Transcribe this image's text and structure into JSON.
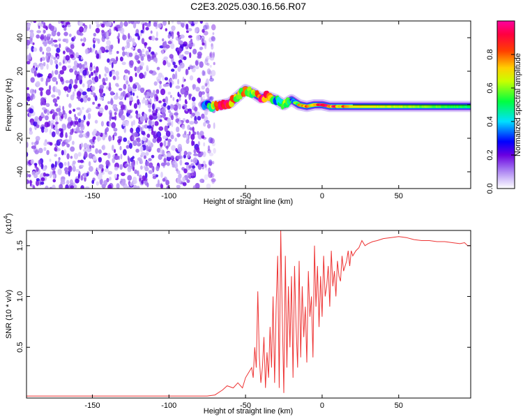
{
  "title": "C2E3.2025.030.16.56.R07",
  "chart_data": [
    {
      "type": "heatmap",
      "xlabel": "Height of straight line (km)",
      "ylabel": "Frequency (Hz)",
      "xlim": [
        -193,
        97
      ],
      "ylim": [
        -50,
        50
      ],
      "x_ticks": [
        -150,
        -100,
        -50,
        0,
        50
      ],
      "y_ticks": [
        -40,
        -20,
        0,
        20,
        40
      ],
      "x_tick_labels": [
        "-150",
        "-100",
        "-50",
        "0",
        "50"
      ],
      "y_tick_labels": [
        "-40",
        "-20",
        "0",
        "20",
        "40"
      ],
      "colorbar": {
        "label": "Normalized spectral amplitude",
        "range": [
          0,
          1
        ],
        "ticks": [
          0.0,
          0.2,
          0.4,
          0.6,
          0.8
        ],
        "tick_labels": [
          "0.0",
          "0.2",
          "0.4",
          "0.6",
          "0.8"
        ],
        "colors": [
          "#ffffff",
          "#c8a8f8",
          "#8a2be2",
          "#4b0082",
          "#0000ff",
          "#00ffff",
          "#00ff00",
          "#ffff00",
          "#ff7f00",
          "#ff0000",
          "#ff00a0"
        ]
      },
      "noise_region_x": [
        -193,
        -73
      ],
      "signal_ridge": [
        {
          "x": -77,
          "freq": 0,
          "amp": 0.25
        },
        {
          "x": -72,
          "freq": -1,
          "amp": 0.55
        },
        {
          "x": -65,
          "freq": 0,
          "amp": 0.95
        },
        {
          "x": -60,
          "freq": 1,
          "amp": 0.85
        },
        {
          "x": -55,
          "freq": 5,
          "amp": 0.6
        },
        {
          "x": -50,
          "freq": 9,
          "amp": 0.75
        },
        {
          "x": -45,
          "freq": 7,
          "amp": 0.55
        },
        {
          "x": -40,
          "freq": 4,
          "amp": 0.9
        },
        {
          "x": -36,
          "freq": 5,
          "amp": 0.85
        },
        {
          "x": -30,
          "freq": 3,
          "amp": 0.4
        },
        {
          "x": -25,
          "freq": 0,
          "amp": 0.6
        },
        {
          "x": -20,
          "freq": 3,
          "amp": 0.35
        },
        {
          "x": -15,
          "freq": 0,
          "amp": 0.6
        },
        {
          "x": -10,
          "freq": -1,
          "amp": 0.85
        },
        {
          "x": -5,
          "freq": 0,
          "amp": 0.7
        },
        {
          "x": 0,
          "freq": 0,
          "amp": 0.9
        },
        {
          "x": 5,
          "freq": -1,
          "amp": 0.85
        },
        {
          "x": 10,
          "freq": -1,
          "amp": 0.8
        },
        {
          "x": 20,
          "freq": -1,
          "amp": 0.7
        },
        {
          "x": 40,
          "freq": -1,
          "amp": 0.65
        },
        {
          "x": 60,
          "freq": -1,
          "amp": 0.6
        },
        {
          "x": 80,
          "freq": -1,
          "amp": 0.55
        },
        {
          "x": 97,
          "freq": -1,
          "amp": 0.5
        }
      ]
    },
    {
      "type": "line",
      "xlabel": "Height of straight line (km)",
      "ylabel": "SNR (10 * v/v)",
      "y_multiplier_label": "(x10",
      "y_multiplier_exponent": "4",
      "y_multiplier_suffix": ")",
      "xlim": [
        -193,
        97
      ],
      "ylim": [
        0,
        1.65
      ],
      "x_ticks": [
        -150,
        -100,
        -50,
        0,
        50
      ],
      "y_ticks": [
        0.5,
        1.0,
        1.5
      ],
      "x_tick_labels": [
        "-150",
        "-100",
        "-50",
        "0",
        "50"
      ],
      "y_tick_labels": [
        "0.5",
        "1.0",
        "1.5"
      ],
      "series": [
        {
          "color": "#ee3333",
          "x": [
            -193,
            -180,
            -160,
            -140,
            -120,
            -100,
            -85,
            -75,
            -70,
            -65,
            -62,
            -58,
            -55,
            -52,
            -50,
            -48,
            -46,
            -45,
            -44,
            -43,
            -42,
            -41,
            -40,
            -39,
            -38,
            -37,
            -36,
            -35,
            -34,
            -33,
            -32,
            -31,
            -30,
            -29,
            -28,
            -27,
            -26,
            -25,
            -24,
            -23,
            -22,
            -21,
            -20,
            -19,
            -18,
            -17,
            -16,
            -15,
            -14,
            -13,
            -12,
            -11,
            -10,
            -9,
            -8,
            -7,
            -6,
            -5,
            -4,
            -3,
            -2,
            -1,
            0,
            1,
            2,
            3,
            4,
            5,
            6,
            7,
            8,
            9,
            10,
            11,
            12,
            13,
            14,
            15,
            16,
            17,
            18,
            19,
            20,
            22,
            24,
            26,
            28,
            30,
            33,
            36,
            40,
            45,
            50,
            55,
            60,
            65,
            70,
            75,
            80,
            85,
            90,
            93,
            95,
            97
          ],
          "y": [
            0.02,
            0.02,
            0.02,
            0.02,
            0.02,
            0.02,
            0.02,
            0.02,
            0.03,
            0.08,
            0.12,
            0.1,
            0.15,
            0.1,
            0.2,
            0.25,
            0.3,
            0.2,
            0.5,
            0.3,
            1.05,
            0.4,
            0.15,
            0.3,
            0.6,
            0.1,
            0.45,
            0.2,
            0.7,
            0.3,
            1.0,
            0.15,
            0.9,
            1.4,
            0.1,
            1.65,
            0.8,
            0.05,
            1.4,
            0.3,
            1.1,
            0.5,
            1.2,
            0.2,
            1.3,
            0.7,
            0.3,
            1.35,
            0.4,
            1.1,
            0.6,
            0.9,
            0.35,
            1.25,
            0.8,
            1.0,
            0.4,
            1.5,
            0.9,
            1.3,
            0.7,
            1.2,
            0.8,
            1.4,
            1.0,
            1.1,
            1.3,
            0.9,
            1.45,
            1.1,
            1.25,
            1.0,
            1.35,
            1.2,
            1.15,
            1.4,
            1.25,
            1.3,
            1.35,
            1.45,
            1.3,
            1.45,
            1.4,
            1.45,
            1.48,
            1.55,
            1.5,
            1.52,
            1.54,
            1.55,
            1.57,
            1.58,
            1.59,
            1.58,
            1.56,
            1.55,
            1.55,
            1.54,
            1.54,
            1.53,
            1.52,
            1.53,
            1.5,
            1.5
          ]
        }
      ]
    }
  ]
}
